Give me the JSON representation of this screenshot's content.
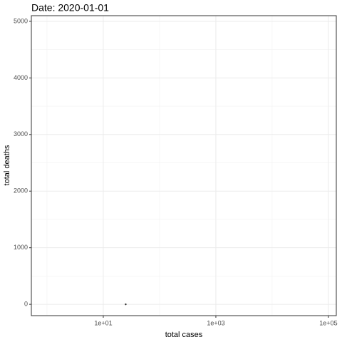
{
  "chart_data": {
    "type": "scatter",
    "title": "Date: 2020-01-01",
    "x_label": "total cases",
    "y_label": "total deaths",
    "x": [
      25
    ],
    "values": [
      0
    ],
    "color": "#333333",
    "xscale": "log",
    "xlim": [
      0.527,
      138000
    ],
    "xticks": [
      {
        "value": 10,
        "label": "1e+01"
      },
      {
        "value": 1000,
        "label": "1e+03"
      },
      {
        "value": 100000,
        "label": "1e+05"
      }
    ],
    "x_minor_grid": [
      1,
      100,
      10000
    ],
    "ylim": [
      -200,
      5100
    ],
    "yticks": [
      0,
      1000,
      2000,
      3000,
      4000,
      5000
    ],
    "y_minor_grid": [
      500,
      1500,
      2500,
      3500,
      4500
    ],
    "grid": true
  }
}
